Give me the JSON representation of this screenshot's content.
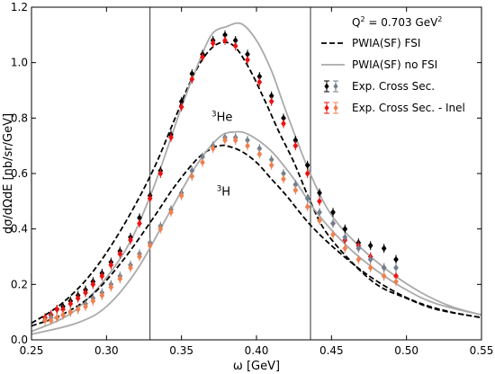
{
  "chart_data": {
    "type": "scatter",
    "title": "",
    "xlabel": "ω [GeV]",
    "ylabel": "dσ/dΩdE [nb/sr/GeV]",
    "xlim": [
      0.25,
      0.55
    ],
    "ylim": [
      0.0,
      1.2
    ],
    "xticks": [
      0.25,
      0.3,
      0.35,
      0.4,
      0.45,
      0.5,
      0.55
    ],
    "xtick_labels": [
      "0.25",
      "0.30",
      "0.35",
      "0.40",
      "0.45",
      "0.50",
      "0.55"
    ],
    "yticks": [
      0.0,
      0.2,
      0.4,
      0.6,
      0.8,
      1.0,
      1.2
    ],
    "ytick_labels": [
      "0.0",
      "0.2",
      "0.4",
      "0.6",
      "0.8",
      "1.0",
      "1.2"
    ],
    "grid": false,
    "vertical_lines": [
      0.329,
      0.436
    ],
    "legend": {
      "position": "top-right",
      "title_main": "Q",
      "title_sup": "2",
      "title_rest": " = 0.703 GeV",
      "title_sup2": "2",
      "entries": [
        {
          "label": "PWIA(SF) FSI",
          "style": "dashed",
          "color": "#000000"
        },
        {
          "label": "PWIA(SF) no FSI",
          "style": "solid",
          "color": "#aaaaaa"
        },
        {
          "label": "Exp. Cross Sec.",
          "style": "points",
          "colors": [
            "#000000",
            "#708090"
          ]
        },
        {
          "label": "Exp. Cross Sec. - Inel",
          "style": "points",
          "colors": [
            "#ee1111",
            "#f08050"
          ]
        }
      ]
    },
    "annotations": [
      {
        "pre": "3",
        "text": "He",
        "x": 0.377,
        "y": 0.79
      },
      {
        "pre": "3",
        "text": "H",
        "x": 0.378,
        "y": 0.52
      }
    ],
    "series": [
      {
        "kind": "curve",
        "style": "dashed",
        "color": "#000000",
        "target": "3He",
        "x": [
          0.25,
          0.27,
          0.29,
          0.31,
          0.33,
          0.345,
          0.355,
          0.365,
          0.375,
          0.385,
          0.395,
          0.405,
          0.415,
          0.425,
          0.435,
          0.445,
          0.46,
          0.48,
          0.5,
          0.52,
          0.55
        ],
        "y": [
          0.06,
          0.13,
          0.24,
          0.4,
          0.6,
          0.79,
          0.92,
          1.02,
          1.07,
          1.06,
          0.98,
          0.87,
          0.75,
          0.64,
          0.51,
          0.4,
          0.3,
          0.2,
          0.15,
          0.11,
          0.08
        ]
      },
      {
        "kind": "curve",
        "style": "solid",
        "color": "#aaaaaa",
        "target": "3He",
        "x": [
          0.25,
          0.28,
          0.31,
          0.33,
          0.35,
          0.36,
          0.37,
          0.38,
          0.39,
          0.4,
          0.41,
          0.42,
          0.435,
          0.45,
          0.47,
          0.49,
          0.51,
          0.53,
          0.55
        ],
        "y": [
          0.03,
          0.11,
          0.3,
          0.53,
          0.84,
          0.98,
          1.1,
          1.13,
          1.14,
          1.08,
          0.97,
          0.82,
          0.61,
          0.45,
          0.33,
          0.24,
          0.17,
          0.12,
          0.09
        ]
      },
      {
        "kind": "curve",
        "style": "dashed",
        "color": "#000000",
        "target": "3H",
        "x": [
          0.25,
          0.27,
          0.29,
          0.31,
          0.33,
          0.345,
          0.36,
          0.37,
          0.375,
          0.38,
          0.39,
          0.4,
          0.41,
          0.42,
          0.435,
          0.45,
          0.47,
          0.49,
          0.51,
          0.53,
          0.55
        ],
        "y": [
          0.05,
          0.09,
          0.16,
          0.28,
          0.43,
          0.55,
          0.65,
          0.69,
          0.7,
          0.7,
          0.68,
          0.64,
          0.58,
          0.52,
          0.42,
          0.34,
          0.25,
          0.18,
          0.13,
          0.1,
          0.08
        ]
      },
      {
        "kind": "curve",
        "style": "solid",
        "color": "#aaaaaa",
        "target": "3H",
        "x": [
          0.25,
          0.28,
          0.3,
          0.32,
          0.34,
          0.36,
          0.375,
          0.385,
          0.395,
          0.41,
          0.425,
          0.44,
          0.46,
          0.48,
          0.5,
          0.52,
          0.55
        ],
        "y": [
          0.02,
          0.06,
          0.12,
          0.25,
          0.44,
          0.63,
          0.73,
          0.75,
          0.74,
          0.68,
          0.58,
          0.46,
          0.34,
          0.25,
          0.18,
          0.13,
          0.09
        ]
      },
      {
        "kind": "points",
        "name": "Exp. Cross Sec.",
        "color": "#000000",
        "target": "3He",
        "x": [
          0.259,
          0.263,
          0.267,
          0.271,
          0.276,
          0.281,
          0.286,
          0.291,
          0.297,
          0.303,
          0.309,
          0.316,
          0.322,
          0.329,
          0.336,
          0.343,
          0.35,
          0.357,
          0.364,
          0.371,
          0.379,
          0.386,
          0.394,
          0.402,
          0.41,
          0.418,
          0.426,
          0.434,
          0.442,
          0.451,
          0.459,
          0.468,
          0.476,
          0.485,
          0.493
        ],
        "y": [
          0.08,
          0.09,
          0.11,
          0.12,
          0.14,
          0.16,
          0.18,
          0.21,
          0.24,
          0.28,
          0.32,
          0.37,
          0.44,
          0.52,
          0.61,
          0.74,
          0.86,
          0.96,
          1.03,
          1.08,
          1.1,
          1.08,
          1.03,
          0.95,
          0.88,
          0.8,
          0.72,
          0.63,
          0.53,
          0.46,
          0.4,
          0.35,
          0.34,
          0.33,
          0.29
        ]
      },
      {
        "kind": "points",
        "name": "Exp. Cross Sec. - Inel",
        "color": "#ee1111",
        "target": "3He",
        "x": [
          0.259,
          0.263,
          0.267,
          0.271,
          0.276,
          0.281,
          0.286,
          0.291,
          0.297,
          0.303,
          0.309,
          0.316,
          0.322,
          0.329,
          0.336,
          0.343,
          0.35,
          0.357,
          0.364,
          0.371,
          0.379,
          0.386,
          0.394,
          0.402,
          0.41,
          0.418,
          0.426,
          0.434,
          0.442,
          0.451,
          0.459,
          0.468,
          0.476,
          0.485,
          0.493
        ],
        "y": [
          0.08,
          0.09,
          0.11,
          0.11,
          0.13,
          0.15,
          0.17,
          0.2,
          0.23,
          0.27,
          0.31,
          0.36,
          0.42,
          0.51,
          0.6,
          0.73,
          0.84,
          0.94,
          1.02,
          1.07,
          1.08,
          1.06,
          1.01,
          0.93,
          0.86,
          0.78,
          0.7,
          0.6,
          0.5,
          0.42,
          0.36,
          0.34,
          0.3,
          0.26,
          0.23
        ]
      },
      {
        "kind": "points",
        "name": "Exp. Cross Sec.",
        "color": "#708090",
        "target": "3H",
        "x": [
          0.259,
          0.263,
          0.267,
          0.271,
          0.276,
          0.281,
          0.286,
          0.291,
          0.297,
          0.303,
          0.309,
          0.316,
          0.322,
          0.329,
          0.336,
          0.343,
          0.35,
          0.357,
          0.364,
          0.371,
          0.379,
          0.386,
          0.394,
          0.402,
          0.41,
          0.418,
          0.426,
          0.434,
          0.442,
          0.451,
          0.459,
          0.468,
          0.476,
          0.485,
          0.493
        ],
        "y": [
          0.07,
          0.08,
          0.08,
          0.09,
          0.1,
          0.11,
          0.13,
          0.15,
          0.17,
          0.2,
          0.23,
          0.27,
          0.31,
          0.35,
          0.41,
          0.47,
          0.53,
          0.61,
          0.66,
          0.7,
          0.73,
          0.73,
          0.72,
          0.69,
          0.65,
          0.6,
          0.56,
          0.51,
          0.46,
          0.42,
          0.37,
          0.33,
          0.29,
          0.26,
          0.26
        ]
      },
      {
        "kind": "points",
        "name": "Exp. Cross Sec. - Inel",
        "color": "#f08050",
        "target": "3H",
        "x": [
          0.259,
          0.263,
          0.267,
          0.271,
          0.276,
          0.281,
          0.286,
          0.291,
          0.297,
          0.303,
          0.309,
          0.316,
          0.322,
          0.329,
          0.336,
          0.343,
          0.35,
          0.357,
          0.364,
          0.371,
          0.379,
          0.386,
          0.394,
          0.402,
          0.41,
          0.418,
          0.426,
          0.434,
          0.442,
          0.451,
          0.459,
          0.468,
          0.476,
          0.485,
          0.493
        ],
        "y": [
          0.07,
          0.07,
          0.08,
          0.09,
          0.1,
          0.11,
          0.12,
          0.14,
          0.16,
          0.19,
          0.22,
          0.26,
          0.3,
          0.34,
          0.4,
          0.46,
          0.52,
          0.59,
          0.64,
          0.69,
          0.72,
          0.72,
          0.7,
          0.67,
          0.63,
          0.58,
          0.54,
          0.48,
          0.43,
          0.38,
          0.33,
          0.29,
          0.26,
          0.23,
          0.21
        ]
      }
    ]
  }
}
